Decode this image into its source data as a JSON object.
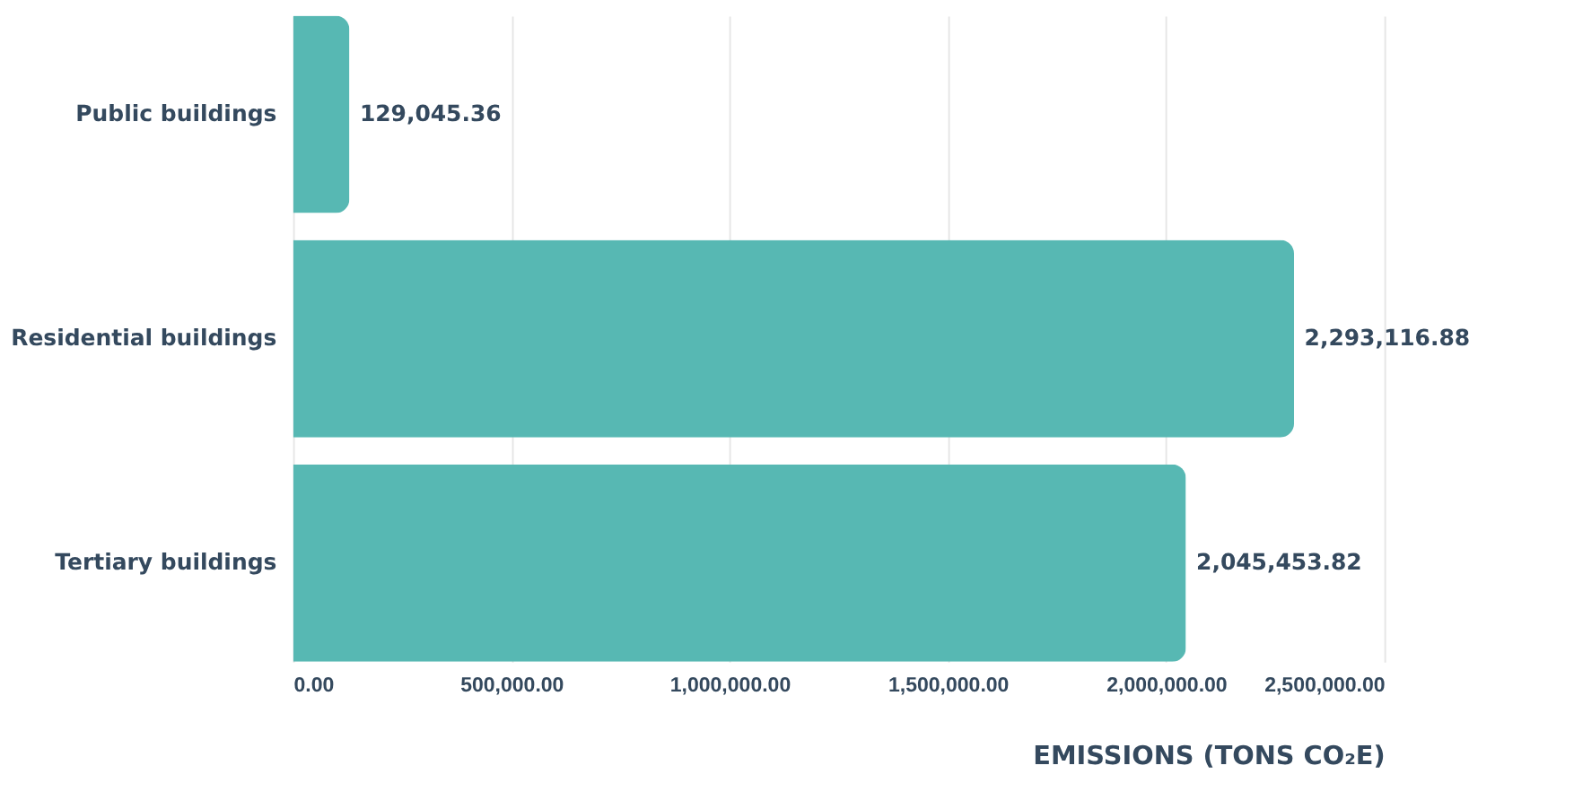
{
  "chart_data": {
    "type": "bar",
    "orientation": "horizontal",
    "categories": [
      "Public buildings",
      "Residential buildings",
      "Tertiary buildings"
    ],
    "values": [
      129045.36,
      2293116.88,
      2045453.82
    ],
    "color": "#57b8b3",
    "xlabel": "EMISSIONS (TONS CO₂E)",
    "xlim": [
      0,
      2500000
    ],
    "xticks": [
      {
        "value": 0,
        "label": "0.00"
      },
      {
        "value": 500000,
        "label": "500,000.00"
      },
      {
        "value": 1000000,
        "label": "1,000,000.00"
      },
      {
        "value": 1500000,
        "label": "1,500,000.00"
      },
      {
        "value": 2000000,
        "label": "2,000,000.00"
      },
      {
        "value": 2500000,
        "label": "2,500,000.00"
      }
    ],
    "value_labels": [
      "129,045.36",
      "2,293,116.88",
      "2,045,453.82"
    ],
    "grid": "x"
  }
}
